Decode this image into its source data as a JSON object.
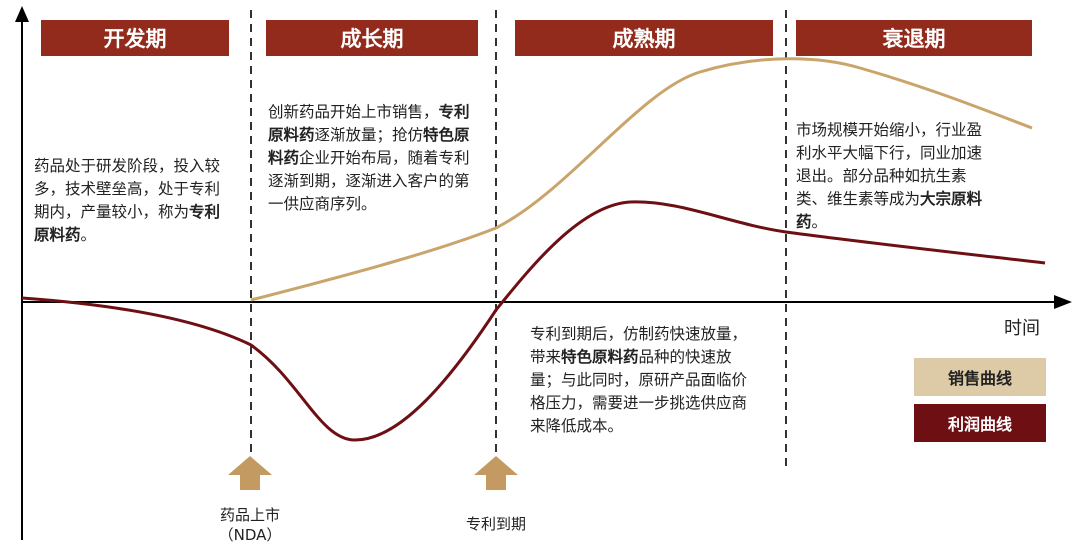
{
  "phases": [
    {
      "label": "开发期"
    },
    {
      "label": "成长期"
    },
    {
      "label": "成熟期"
    },
    {
      "label": "衰退期"
    }
  ],
  "descriptions": {
    "development": {
      "plain": "药品处于研发阶段，投入较多，技术壁垒高，处于专利期内，产量较小，称为",
      "bold": "专利原料药",
      "end": "。"
    },
    "growth": {
      "p1": "创新药品开始上市销售，",
      "b1": "专利原料药",
      "p2": "逐渐放量；抢仿",
      "b2": "特色原料药",
      "p3": "企业开始布局，随着专利逐渐到期，逐渐进入客户的第一供应商序列。"
    },
    "maturity": {
      "p1": "专利到期后，仿制药快速放量，带来",
      "b1": "特色原料药",
      "p2": "品种的快速放量；与此同时，原研产品面临价格压力，需要进一步挑选供应商来降低成本。"
    },
    "decline": {
      "p1": "市场规模开始缩小，行业盈利水平大幅下行，同业加速退出。部分品种如抗生素类、维生素等成为",
      "b1": "大宗原料药",
      "p2": "。"
    }
  },
  "axis": {
    "x_label": "时间"
  },
  "markers": [
    {
      "line1": "药品上市",
      "line2": "（NDA）"
    },
    {
      "line1": "专利到期",
      "line2": ""
    }
  ],
  "legend": [
    {
      "label": "销售曲线",
      "color": "#dccba6"
    },
    {
      "label": "利润曲线",
      "color": "#6e0f14"
    }
  ],
  "colors": {
    "sales_curve": "#c9a46b",
    "profit_curve": "#6e0f14",
    "phase_header": "#922b1b",
    "marker_arrow": "#c49a63"
  }
}
